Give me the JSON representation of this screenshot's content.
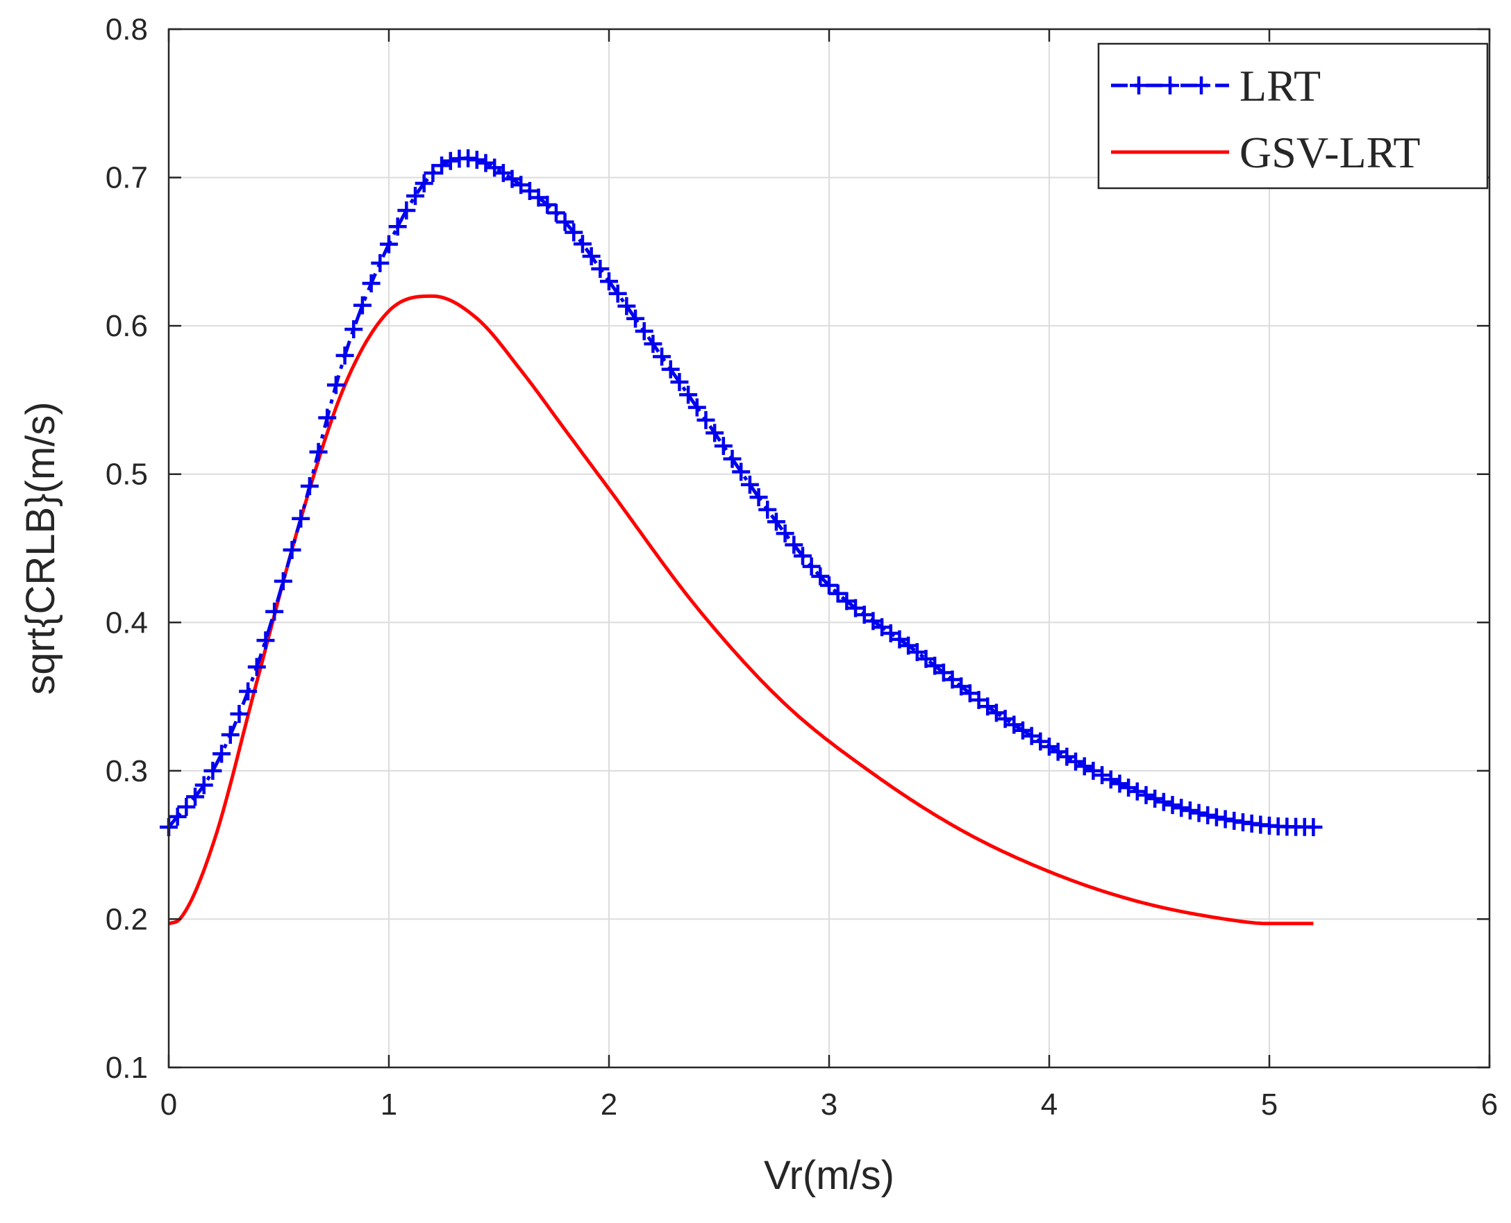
{
  "chart_data": {
    "type": "line",
    "title": "",
    "xlabel": "Vr(m/s)",
    "ylabel": "sqrt{CRLB}(m/s)",
    "xlim": [
      0,
      6
    ],
    "ylim": [
      0.1,
      0.8
    ],
    "xticks": [
      0,
      1,
      2,
      3,
      4,
      5,
      6
    ],
    "yticks": [
      0.1,
      0.2,
      0.3,
      0.4,
      0.5,
      0.6,
      0.7,
      0.8
    ],
    "xtick_labels": [
      "0",
      "1",
      "2",
      "3",
      "4",
      "5",
      "6"
    ],
    "ytick_labels": [
      "0.1",
      "0.2",
      "0.3",
      "0.4",
      "0.5",
      "0.6",
      "0.7",
      "0.8"
    ],
    "grid": true,
    "legend_position": "top-right",
    "x_range": [
      0,
      5.2
    ],
    "series": [
      {
        "name": "LRT",
        "color": "#0000ee",
        "style": "dash-dot with plus markers",
        "x": [
          0,
          0.2,
          0.4,
          0.6,
          0.8,
          1.0,
          1.2,
          1.35,
          1.6,
          1.8,
          2.0,
          2.4,
          2.8,
          3.0,
          3.4,
          3.8,
          4.2,
          4.6,
          5.0,
          5.2
        ],
        "y": [
          0.262,
          0.3,
          0.37,
          0.47,
          0.58,
          0.655,
          0.703,
          0.713,
          0.695,
          0.67,
          0.63,
          0.545,
          0.46,
          0.425,
          0.38,
          0.335,
          0.3,
          0.275,
          0.263,
          0.262
        ]
      },
      {
        "name": "GSV-LRT",
        "color": "#ff0000",
        "style": "solid",
        "x": [
          0,
          0.05,
          0.2,
          0.4,
          0.6,
          0.8,
          1.0,
          1.2,
          1.4,
          1.6,
          1.8,
          2.0,
          2.4,
          2.8,
          3.2,
          3.6,
          4.0,
          4.4,
          4.8,
          5.0,
          5.2
        ],
        "y": [
          0.197,
          0.2,
          0.25,
          0.36,
          0.47,
          0.56,
          0.61,
          0.62,
          0.605,
          0.57,
          0.53,
          0.49,
          0.41,
          0.345,
          0.298,
          0.26,
          0.232,
          0.212,
          0.2,
          0.197,
          0.197
        ]
      }
    ]
  }
}
